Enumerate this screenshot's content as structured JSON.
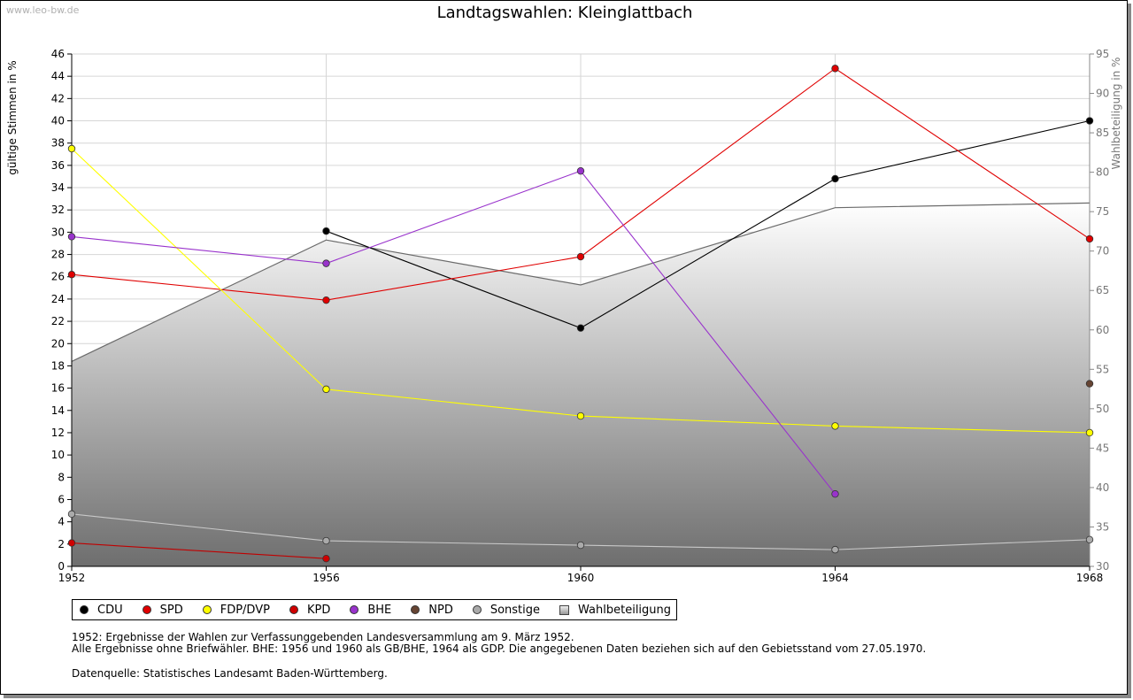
{
  "watermark": "www.leo-bw.de",
  "chart_data": {
    "type": "line",
    "title": "Landtagswahlen: Kleinglattbach",
    "ylabel": "gültige Stimmen in %",
    "y2label": "Wahlbeteiligung in %",
    "x": [
      1952,
      1956,
      1960,
      1964,
      1968
    ],
    "xlim": [
      1952,
      1968
    ],
    "ylim": [
      0,
      46
    ],
    "y2lim": [
      30,
      95
    ],
    "y_ticks": [
      0,
      2,
      4,
      6,
      8,
      10,
      12,
      14,
      16,
      18,
      20,
      22,
      24,
      26,
      28,
      30,
      32,
      34,
      36,
      38,
      40,
      42,
      44,
      46
    ],
    "y2_ticks": [
      30,
      35,
      40,
      45,
      50,
      55,
      60,
      65,
      70,
      75,
      80,
      85,
      90,
      95
    ],
    "grid": true,
    "legend_position": "bottom",
    "series": [
      {
        "name": "CDU",
        "color": "#000000",
        "marker": "#000000",
        "values": [
          null,
          30.1,
          21.4,
          34.8,
          40.0
        ]
      },
      {
        "name": "SPD",
        "color": "#e00000",
        "marker": "#e00000",
        "values": [
          26.2,
          23.9,
          27.8,
          44.7,
          29.4
        ]
      },
      {
        "name": "FDP/DVP",
        "color": "#ffff00",
        "marker": "#ffff00",
        "values": [
          37.5,
          15.9,
          13.5,
          12.6,
          12.0
        ]
      },
      {
        "name": "KPD",
        "color": "#c00000",
        "marker": "#d00000",
        "values": [
          2.1,
          0.7,
          null,
          null,
          null
        ]
      },
      {
        "name": "BHE",
        "color": "#9933cc",
        "marker": "#9933cc",
        "values": [
          29.6,
          27.2,
          35.5,
          6.5,
          null
        ]
      },
      {
        "name": "NPD",
        "color": "#664433",
        "marker": "#664433",
        "values": [
          null,
          null,
          null,
          null,
          16.4
        ]
      },
      {
        "name": "Sonstige",
        "color": "#c8c8c8",
        "marker": "#aaaaaa",
        "values": [
          4.7,
          2.3,
          1.9,
          1.5,
          2.4
        ]
      }
    ],
    "area_series": {
      "name": "Wahlbeteiligung",
      "axis": "right",
      "values": [
        56.0,
        71.4,
        65.7,
        75.5,
        76.1
      ]
    }
  },
  "notes": [
    "1952: Ergebnisse der Wahlen zur Verfassunggebenden Landesversammlung am 9. März 1952.",
    "Alle Ergebnisse ohne Briefwähler. BHE: 1956 und 1960 als GB/BHE, 1964 als GDP. Die angegebenen Daten beziehen sich auf den Gebietsstand vom 27.05.1970."
  ],
  "source": "Datenquelle: Statistisches Landesamt Baden-Württemberg."
}
